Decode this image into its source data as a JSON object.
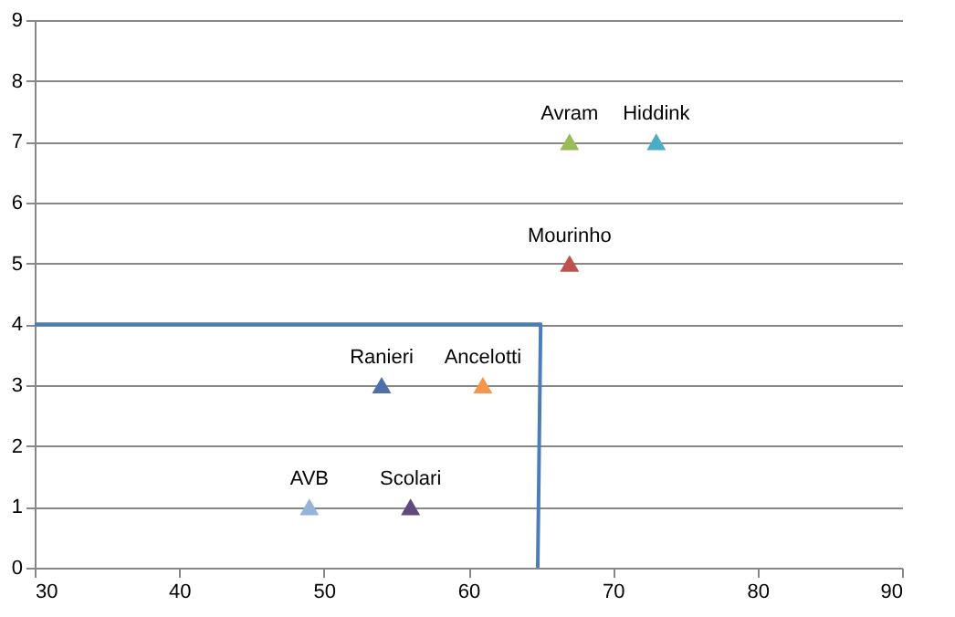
{
  "chart_data": {
    "type": "scatter",
    "marker": "triangle",
    "grid": "y",
    "xlim": [
      30,
      90
    ],
    "xticks": [
      30,
      40,
      50,
      60,
      70,
      80,
      90
    ],
    "ylim": [
      0,
      9
    ],
    "yticks": [
      0,
      1,
      2,
      3,
      4,
      5,
      6,
      7,
      8,
      9
    ],
    "series": [
      {
        "name": "AVB",
        "color": "#95b3d7",
        "x": [
          49
        ],
        "values": [
          1
        ]
      },
      {
        "name": "Scolari",
        "color": "#604a7b",
        "x": [
          56
        ],
        "values": [
          1
        ]
      },
      {
        "name": "Ranieri",
        "color": "#4f6fa8",
        "x": [
          54
        ],
        "values": [
          3
        ]
      },
      {
        "name": "Ancelotti",
        "color": "#f79646",
        "x": [
          61
        ],
        "values": [
          3
        ]
      },
      {
        "name": "Mourinho",
        "color": "#c0504d",
        "x": [
          67
        ],
        "values": [
          5
        ]
      },
      {
        "name": "Avram",
        "color": "#9bbb59",
        "x": [
          67
        ],
        "values": [
          7
        ]
      },
      {
        "name": "Hiddink",
        "color": "#4bacc6",
        "x": [
          73
        ],
        "values": [
          7
        ]
      },
      {
        "type": "line",
        "marker": "none",
        "color": "#4a7ebb",
        "x": [
          30,
          65,
          64.8
        ],
        "values": [
          4,
          4,
          0
        ]
      }
    ]
  }
}
